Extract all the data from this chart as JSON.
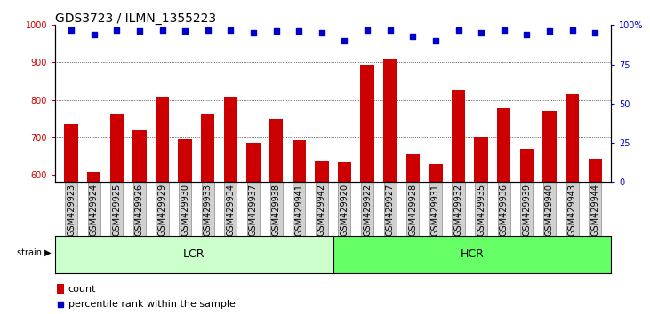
{
  "title": "GDS3723 / ILMN_1355223",
  "categories": [
    "GSM429923",
    "GSM429924",
    "GSM429925",
    "GSM429926",
    "GSM429929",
    "GSM429930",
    "GSM429933",
    "GSM429934",
    "GSM429937",
    "GSM429938",
    "GSM429941",
    "GSM429942",
    "GSM429920",
    "GSM429922",
    "GSM429927",
    "GSM429928",
    "GSM429931",
    "GSM429932",
    "GSM429935",
    "GSM429936",
    "GSM429939",
    "GSM429940",
    "GSM429943",
    "GSM429944"
  ],
  "counts": [
    735,
    608,
    760,
    718,
    808,
    695,
    760,
    808,
    685,
    750,
    693,
    635,
    633,
    893,
    910,
    655,
    628,
    828,
    700,
    778,
    668,
    770,
    815,
    643
  ],
  "percentile_ranks": [
    97,
    94,
    97,
    96,
    97,
    96,
    97,
    97,
    95,
    96,
    96,
    95,
    90,
    97,
    97,
    93,
    90,
    97,
    95,
    97,
    94,
    96,
    97,
    95
  ],
  "lcr_count": 12,
  "hcr_count": 12,
  "lcr_label": "LCR",
  "hcr_label": "HCR",
  "strain_label": "strain",
  "bar_color": "#cc0000",
  "dot_color": "#0000cc",
  "ylim_left": [
    580,
    1000
  ],
  "ylim_right": [
    0,
    100
  ],
  "yticks_left": [
    600,
    700,
    800,
    900,
    1000
  ],
  "yticks_right": [
    0,
    25,
    50,
    75,
    100
  ],
  "grid_values": [
    700,
    800,
    900
  ],
  "legend_count_label": "count",
  "legend_percentile_label": "percentile rank within the sample",
  "bg_color_lcr": "#ccffcc",
  "bg_color_hcr": "#66ff66",
  "title_fontsize": 10,
  "tick_fontsize": 7,
  "label_fontsize": 8,
  "axis_label_color_left": "#cc0000",
  "axis_label_color_right": "#0000cc"
}
